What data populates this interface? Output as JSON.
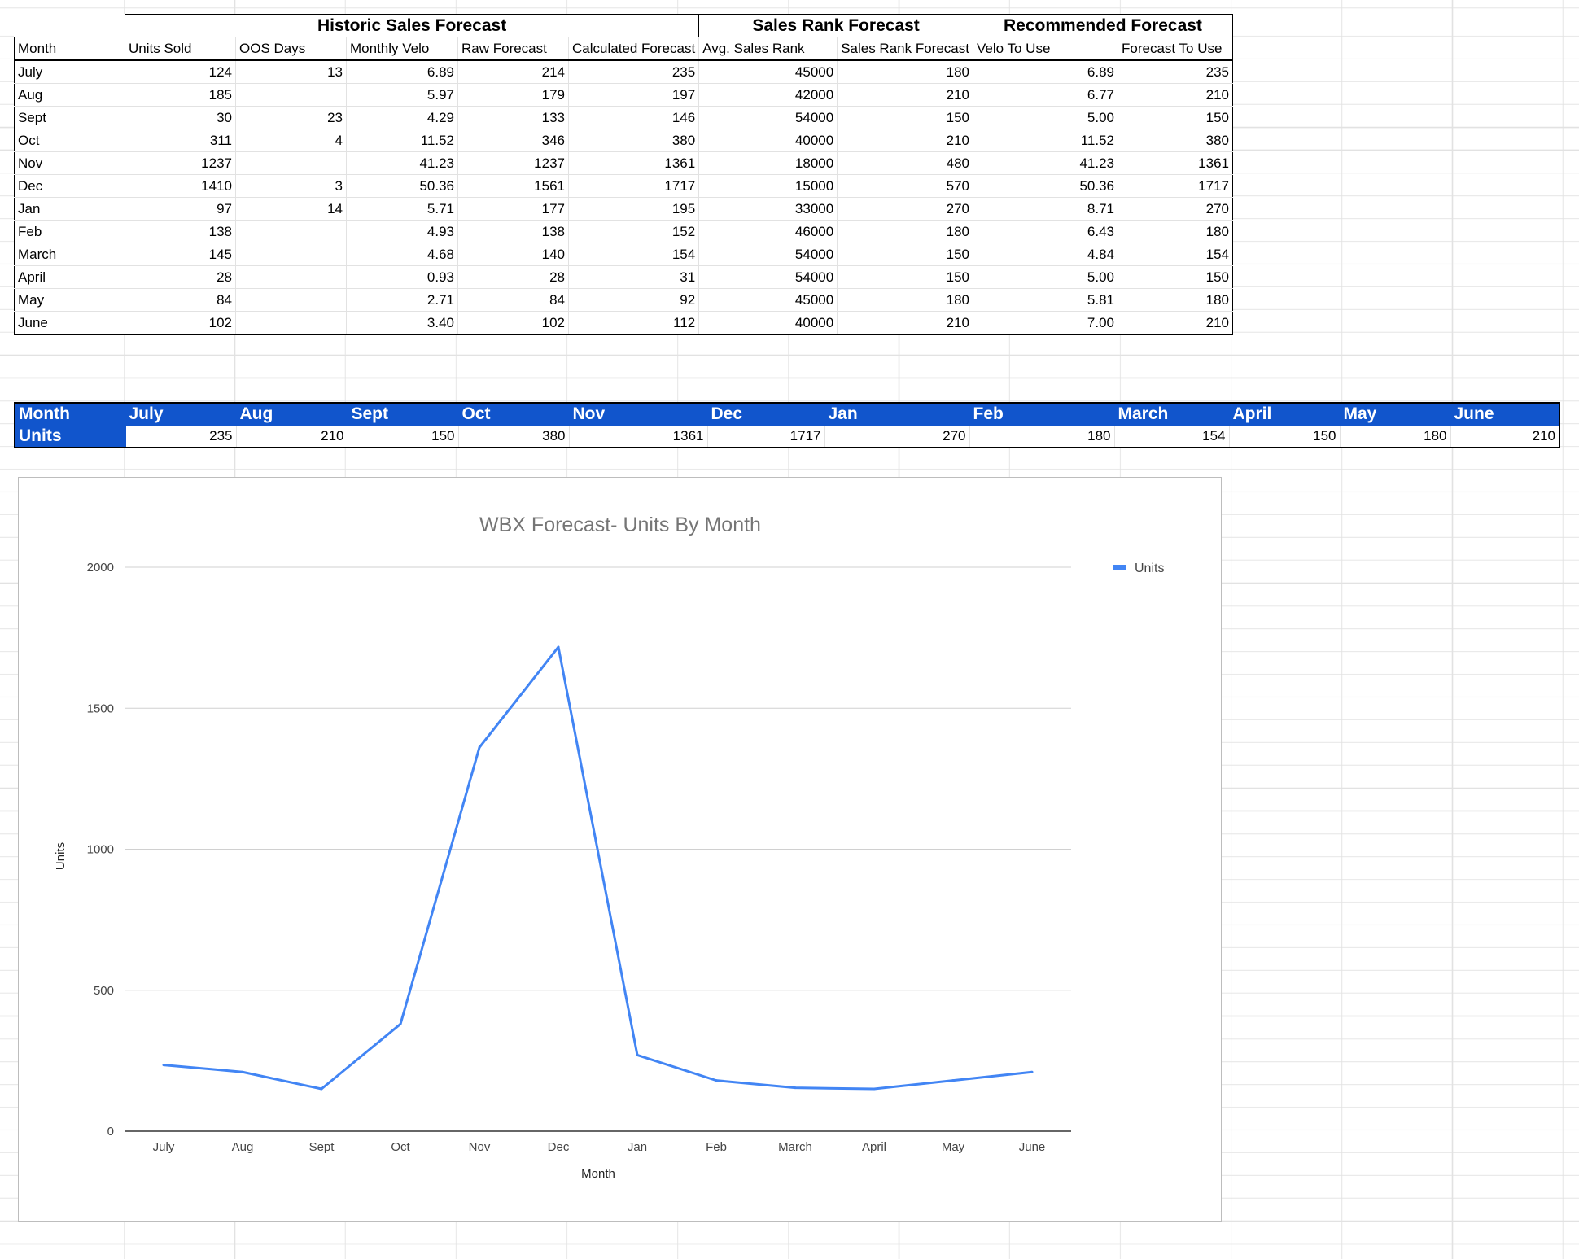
{
  "forecast_table": {
    "groups": [
      "Historic Sales Forecast",
      "Sales Rank Forecast",
      "Recommended Forecast"
    ],
    "columns": [
      "Month",
      "Units Sold",
      "OOS Days",
      "Monthly Velo",
      "Raw Forecast",
      "Calculated Forecast",
      "Avg. Sales Rank",
      "Sales Rank Forecast",
      "Velo To Use",
      "Forecast To Use"
    ],
    "rows": [
      [
        "July",
        "124",
        "13",
        "6.89",
        "214",
        "235",
        "45000",
        "180",
        "6.89",
        "235"
      ],
      [
        "Aug",
        "185",
        "",
        "5.97",
        "179",
        "197",
        "42000",
        "210",
        "6.77",
        "210"
      ],
      [
        "Sept",
        "30",
        "23",
        "4.29",
        "133",
        "146",
        "54000",
        "150",
        "5.00",
        "150"
      ],
      [
        "Oct",
        "311",
        "4",
        "11.52",
        "346",
        "380",
        "40000",
        "210",
        "11.52",
        "380"
      ],
      [
        "Nov",
        "1237",
        "",
        "41.23",
        "1237",
        "1361",
        "18000",
        "480",
        "41.23",
        "1361"
      ],
      [
        "Dec",
        "1410",
        "3",
        "50.36",
        "1561",
        "1717",
        "15000",
        "570",
        "50.36",
        "1717"
      ],
      [
        "Jan",
        "97",
        "14",
        "5.71",
        "177",
        "195",
        "33000",
        "270",
        "8.71",
        "270"
      ],
      [
        "Feb",
        "138",
        "",
        "4.93",
        "138",
        "152",
        "46000",
        "180",
        "6.43",
        "180"
      ],
      [
        "March",
        "145",
        "",
        "4.68",
        "140",
        "154",
        "54000",
        "150",
        "4.84",
        "154"
      ],
      [
        "April",
        "28",
        "",
        "0.93",
        "28",
        "31",
        "54000",
        "150",
        "5.00",
        "150"
      ],
      [
        "May",
        "84",
        "",
        "2.71",
        "84",
        "92",
        "45000",
        "180",
        "5.81",
        "180"
      ],
      [
        "June",
        "102",
        "",
        "3.40",
        "102",
        "112",
        "40000",
        "210",
        "7.00",
        "210"
      ]
    ]
  },
  "summary_table": {
    "header_label": "Month",
    "row_label": "Units",
    "months": [
      "July",
      "Aug",
      "Sept",
      "Oct",
      "Nov",
      "Dec",
      "Jan",
      "Feb",
      "March",
      "April",
      "May",
      "June"
    ],
    "units": [
      "235",
      "210",
      "150",
      "380",
      "1361",
      "1717",
      "270",
      "180",
      "154",
      "150",
      "180",
      "210"
    ],
    "header_color": "#1155cc"
  },
  "chart_data": {
    "type": "line",
    "title": "WBX Forecast- Units By Month",
    "xlabel": "Month",
    "ylabel": "Units",
    "categories": [
      "July",
      "Aug",
      "Sept",
      "Oct",
      "Nov",
      "Dec",
      "Jan",
      "Feb",
      "March",
      "April",
      "May",
      "June"
    ],
    "series": [
      {
        "name": "Units",
        "values": [
          235,
          210,
          150,
          380,
          1361,
          1717,
          270,
          180,
          154,
          150,
          180,
          210
        ],
        "color": "#4285f4"
      }
    ],
    "ylim": [
      0,
      2000
    ],
    "yticks": [
      0,
      500,
      1000,
      1500,
      2000
    ],
    "grid": true,
    "legend": "right-top"
  }
}
